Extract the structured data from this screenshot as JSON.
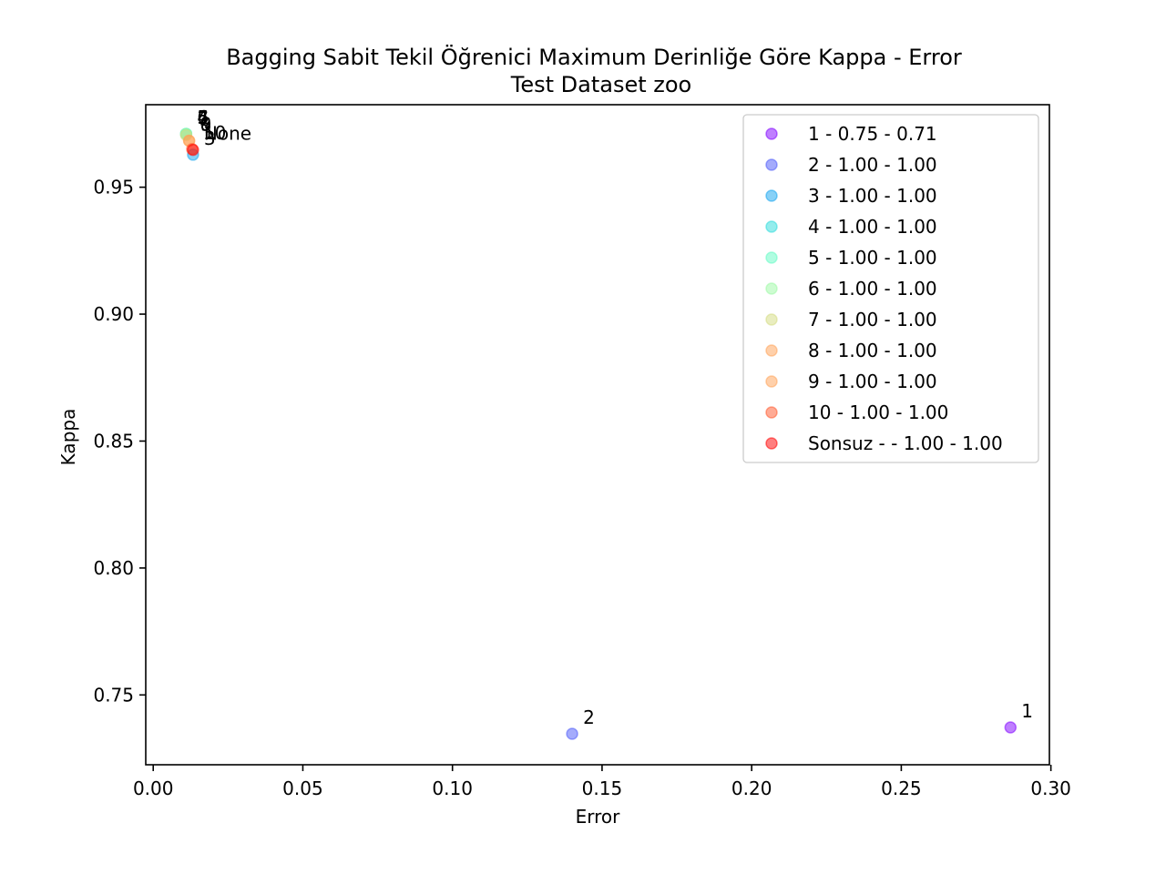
{
  "chart_data": {
    "type": "scatter",
    "title": "Bagging Sabit Tekil Öğrenici Maximum Derinliğe Göre Kappa - Error",
    "subtitle": "Test Dataset  zoo",
    "xlabel": "Error",
    "ylabel": "Kappa",
    "xlim": [
      -0.0025,
      0.2995
    ],
    "ylim": [
      0.7225,
      0.9825
    ],
    "xticks": [
      0.0,
      0.05,
      0.1,
      0.15,
      0.2,
      0.25,
      0.3
    ],
    "xtick_labels": [
      "0.00",
      "0.05",
      "0.10",
      "0.15",
      "0.20",
      "0.25",
      "0.30"
    ],
    "yticks": [
      0.75,
      0.8,
      0.85,
      0.9,
      0.95
    ],
    "ytick_labels": [
      "0.75",
      "0.80",
      "0.85",
      "0.90",
      "0.95"
    ],
    "grid": false,
    "legend_position": "top-right",
    "series": [
      {
        "name": "1 - 0.75 - 0.71",
        "label": "1",
        "x": 0.2865,
        "y": 0.7372,
        "color": "#8000ff"
      },
      {
        "name": "2 - 1.00 - 1.00",
        "label": "2",
        "x": 0.14,
        "y": 0.7347,
        "color": "#4a58fa"
      },
      {
        "name": "3 - 1.00 - 1.00",
        "label": "3",
        "x": 0.0133,
        "y": 0.9628,
        "color": "#12a4ef"
      },
      {
        "name": "4 - 1.00 - 1.00",
        "label": "4",
        "x": 0.011,
        "y": 0.971,
        "color": "#2adcdc"
      },
      {
        "name": "5 - 1.00 - 1.00",
        "label": "5",
        "x": 0.011,
        "y": 0.971,
        "color": "#62fbc4"
      },
      {
        "name": "6 - 1.00 - 1.00",
        "label": "6",
        "x": 0.011,
        "y": 0.971,
        "color": "#9cfaa4"
      },
      {
        "name": "7 - 1.00 - 1.00",
        "label": "7",
        "x": 0.011,
        "y": 0.9705,
        "color": "#d4dc7f"
      },
      {
        "name": "8 - 1.00 - 1.00",
        "label": "8",
        "x": 0.012,
        "y": 0.9683,
        "color": "#ffa256"
      },
      {
        "name": "9 - 1.00 - 1.00",
        "label": "9",
        "x": 0.012,
        "y": 0.9683,
        "color": "#ffa256"
      },
      {
        "name": "10 - 1.00 - 1.00",
        "label": "10",
        "x": 0.013,
        "y": 0.965,
        "color": "#ff582c"
      },
      {
        "name": "Sonsuz -  - 1.00 - 1.00",
        "label": "None",
        "x": 0.0133,
        "y": 0.9647,
        "color": "#ff0000"
      }
    ]
  }
}
